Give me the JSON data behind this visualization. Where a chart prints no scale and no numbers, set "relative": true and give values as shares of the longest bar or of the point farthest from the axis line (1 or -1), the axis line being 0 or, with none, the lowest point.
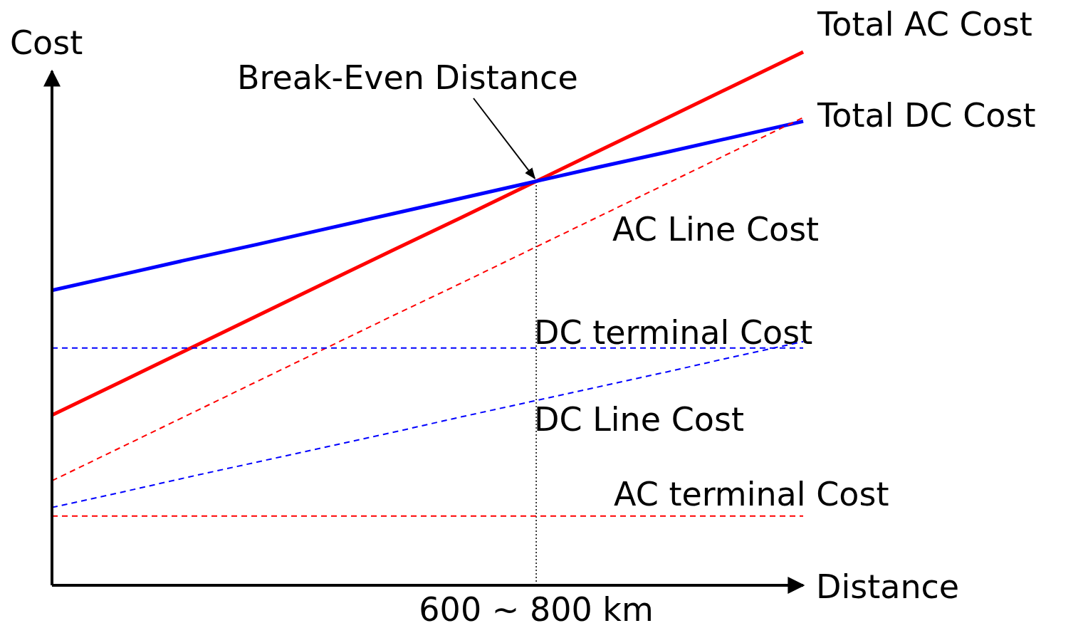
{
  "chart_data": {
    "type": "line",
    "relative": true,
    "xlabel": "Distance",
    "ylabel": "Cost",
    "categories": [
      null,
      null,
      null,
      null,
      null,
      null,
      null,
      null,
      null,
      null,
      null,
      null
    ],
    "series": [
      {
        "name": "Total AC Cost",
        "color": "#ff0000",
        "line_style": "solid",
        "values": [
          0.319,
          0.381,
          0.443,
          0.505,
          0.567,
          0.629,
          0.69,
          0.752,
          0.814,
          0.876,
          0.938,
          1.0
        ]
      },
      {
        "name": "Total DC Cost",
        "color": "#0000ff",
        "line_style": "solid",
        "values": [
          0.553,
          0.582,
          0.611,
          0.639,
          0.668,
          0.697,
          0.726,
          0.755,
          0.784,
          0.812,
          0.841,
          0.87
        ]
      },
      {
        "name": "AC Line Cost",
        "color": "#ff0000",
        "line_style": "dashed",
        "values": [
          0.196,
          0.258,
          0.32,
          0.382,
          0.444,
          0.506,
          0.567,
          0.629,
          0.691,
          0.753,
          0.815,
          0.877
        ]
      },
      {
        "name": "DC terminal Cost",
        "color": "#0000ff",
        "line_style": "dashed",
        "values": [
          0.445,
          0.445,
          0.445,
          0.445,
          0.445,
          0.445,
          0.445,
          0.445,
          0.445,
          0.445,
          0.445,
          0.445
        ]
      },
      {
        "name": "DC Line Cost",
        "color": "#0000ff",
        "line_style": "dashed",
        "values": [
          0.146,
          0.174,
          0.203,
          0.231,
          0.259,
          0.287,
          0.316,
          0.344,
          0.372,
          0.4,
          0.429,
          0.457
        ]
      },
      {
        "name": "AC terminal Cost",
        "color": "#ff0000",
        "line_style": "dashed",
        "values": [
          0.13,
          0.13,
          0.13,
          0.13,
          0.13,
          0.13,
          0.13,
          0.13,
          0.13,
          0.13,
          0.13,
          0.13
        ]
      }
    ],
    "annotations": [
      "Break-Even Distance",
      "600 ~ 800 km"
    ]
  }
}
